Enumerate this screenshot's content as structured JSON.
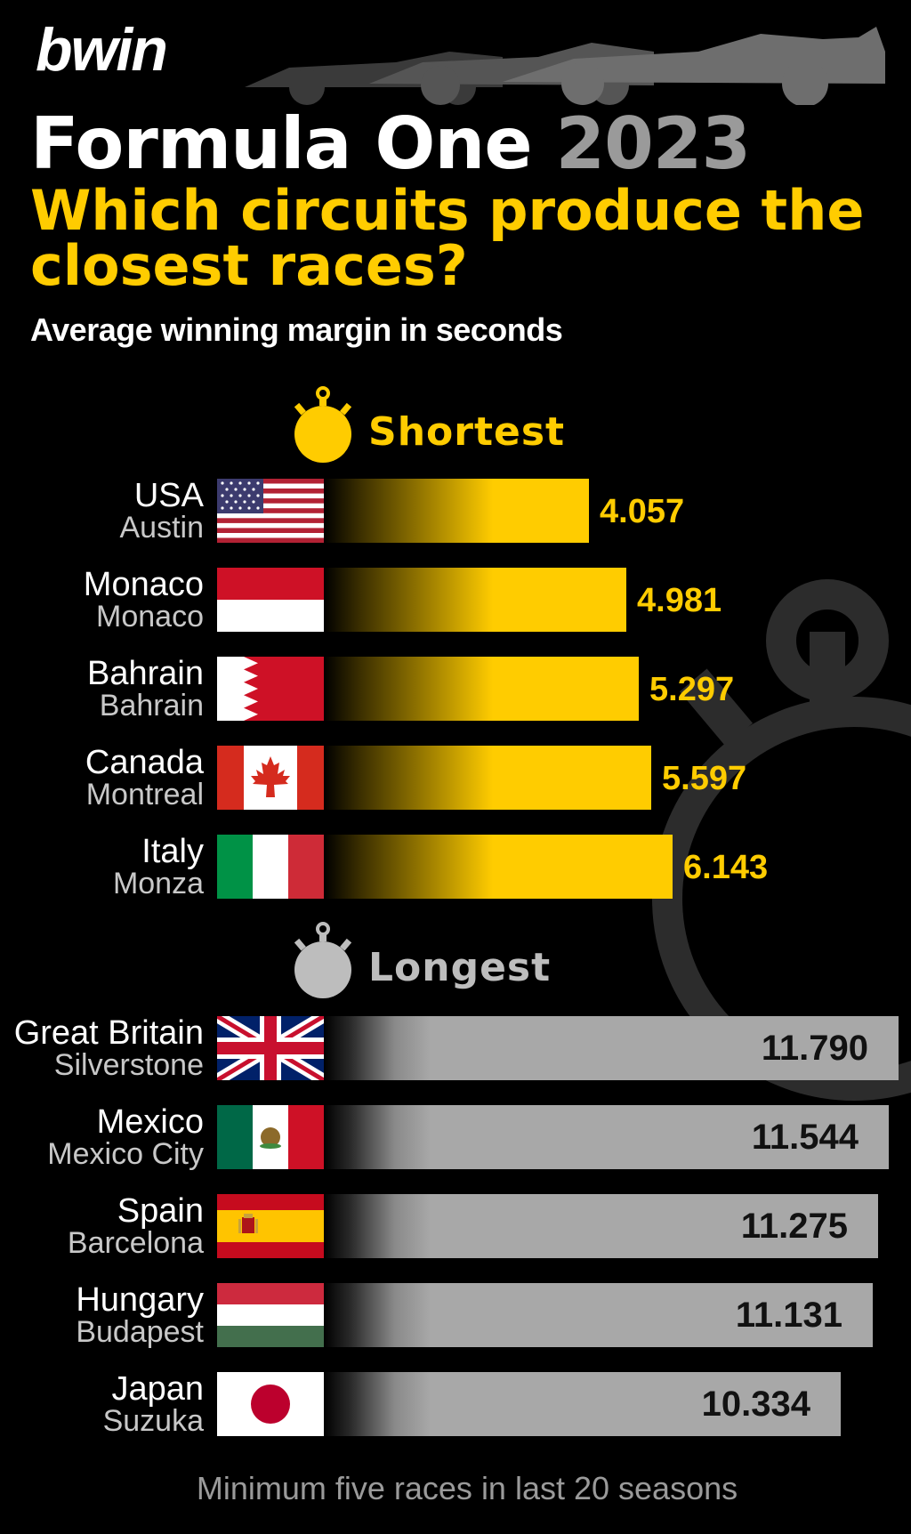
{
  "header": {
    "logo": "bwin",
    "title_main": "Formula One",
    "title_year": "2023",
    "headline": "Which circuits produce the closest races?",
    "subtitle": "Average winning margin in seconds"
  },
  "footnote": "Minimum five races in last 20 seasons",
  "colors": {
    "shortest": "#ffcc00",
    "longest": "#a8a8a8",
    "background": "#000000"
  },
  "chart_data": [
    {
      "type": "bar",
      "title": "Shortest",
      "categories": [
        "USA",
        "Monaco",
        "Bahrain",
        "Canada",
        "Italy"
      ],
      "circuits": [
        "Austin",
        "Monaco",
        "Bahrain",
        "Montreal",
        "Monza"
      ],
      "values": [
        4.057,
        4.981,
        5.297,
        5.597,
        6.143
      ],
      "value_labels": [
        "4.057",
        "4.981",
        "5.297",
        "5.597",
        "6.143"
      ],
      "xlim": [
        0,
        12
      ]
    },
    {
      "type": "bar",
      "title": "Longest",
      "categories": [
        "Great Britain",
        "Mexico",
        "Spain",
        "Hungary",
        "Japan"
      ],
      "circuits": [
        "Silverstone",
        "Mexico City",
        "Barcelona",
        "Budapest",
        "Suzuka"
      ],
      "values": [
        11.79,
        11.544,
        11.275,
        11.131,
        10.334
      ],
      "value_labels": [
        "11.790",
        "11.544",
        "11.275",
        "11.131",
        "10.334"
      ],
      "xlim": [
        0,
        12
      ]
    }
  ]
}
